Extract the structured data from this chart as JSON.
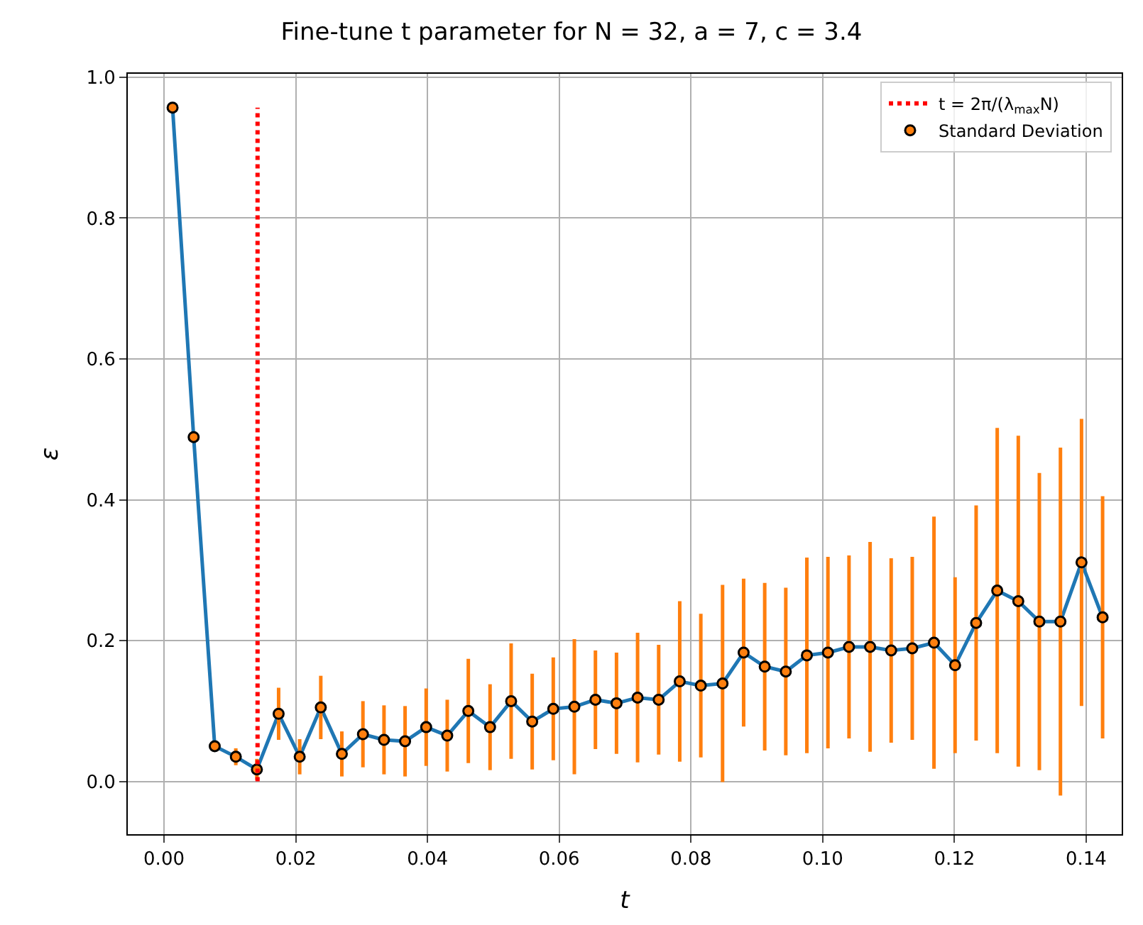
{
  "chart_data": {
    "type": "scatter",
    "title": "Fine-tune t parameter for N = 32, a = 7, c = 3.4",
    "xlabel": "t",
    "ylabel": "ε",
    "x": [
      0.0013,
      0.0045,
      0.0077,
      0.0109,
      0.0141,
      0.0174,
      0.0206,
      0.0238,
      0.027,
      0.0302,
      0.0334,
      0.0366,
      0.0398,
      0.043,
      0.0462,
      0.0495,
      0.0527,
      0.0559,
      0.0591,
      0.0623,
      0.0655,
      0.0687,
      0.0719,
      0.0751,
      0.0783,
      0.0815,
      0.0848,
      0.088,
      0.0912,
      0.0944,
      0.0976,
      0.1008,
      0.104,
      0.1072,
      0.1104,
      0.1136,
      0.1169,
      0.1201,
      0.1233,
      0.1265,
      0.1297,
      0.1329,
      0.1361,
      0.1393,
      0.1425
    ],
    "series": [
      {
        "type": "line",
        "color": "#1f77b4",
        "marker": "none",
        "values": [
          0.957,
          0.489,
          0.05,
          0.035,
          0.017,
          0.096,
          0.035,
          0.105,
          0.039,
          0.067,
          0.059,
          0.057,
          0.077,
          0.065,
          0.1,
          0.077,
          0.114,
          0.085,
          0.103,
          0.106,
          0.116,
          0.111,
          0.119,
          0.116,
          0.142,
          0.136,
          0.139,
          0.183,
          0.163,
          0.156,
          0.179,
          0.183,
          0.191,
          0.191,
          0.186,
          0.189,
          0.197,
          0.165,
          0.225,
          0.271,
          0.256,
          0.227,
          0.227,
          0.311,
          0.233
        ]
      },
      {
        "name": "Standard Deviation",
        "color": "#ff7f0e",
        "marker": "circle",
        "values": [
          0.957,
          0.489,
          0.05,
          0.035,
          0.017,
          0.096,
          0.035,
          0.105,
          0.039,
          0.067,
          0.059,
          0.057,
          0.077,
          0.065,
          0.1,
          0.077,
          0.114,
          0.085,
          0.103,
          0.106,
          0.116,
          0.111,
          0.119,
          0.116,
          0.142,
          0.136,
          0.139,
          0.183,
          0.163,
          0.156,
          0.179,
          0.183,
          0.191,
          0.191,
          0.186,
          0.189,
          0.197,
          0.165,
          0.225,
          0.271,
          0.256,
          0.227,
          0.227,
          0.311,
          0.233
        ],
        "errors": [
          0.002,
          0.002,
          0.004,
          0.012,
          0.015,
          0.037,
          0.025,
          0.045,
          0.032,
          0.047,
          0.049,
          0.05,
          0.055,
          0.051,
          0.074,
          0.061,
          0.082,
          0.068,
          0.073,
          0.096,
          0.07,
          0.072,
          0.092,
          0.078,
          0.114,
          0.102,
          0.14,
          0.105,
          0.119,
          0.119,
          0.139,
          0.136,
          0.13,
          0.149,
          0.131,
          0.13,
          0.179,
          0.125,
          0.167,
          0.231,
          0.235,
          0.211,
          0.247,
          0.204,
          0.172
        ]
      },
      {
        "type": "line",
        "name": "t = 2π/(λ$_{max}$N)",
        "color": "#ff0000",
        "marker": "none",
        "line_style": "dotted",
        "x": [
          0.0142,
          0.0142
        ],
        "values": [
          0,
          0.957
        ]
      }
    ],
    "xlim": [
      -0.0055,
      0.1454
    ],
    "ylim": [
      -0.075,
      1.005
    ],
    "xticks": [
      {
        "value": 0,
        "label": "0.00"
      },
      {
        "value": 0.02,
        "label": "0.02"
      },
      {
        "value": 0.04,
        "label": "0.04"
      },
      {
        "value": 0.06,
        "label": "0.06"
      },
      {
        "value": 0.08,
        "label": "0.08"
      },
      {
        "value": 0.1,
        "label": "0.10"
      },
      {
        "value": 0.12,
        "label": "0.12"
      },
      {
        "value": 0.14,
        "label": "0.14"
      }
    ],
    "yticks": [
      {
        "value": 0,
        "label": "0.0"
      },
      {
        "value": 0.2,
        "label": "0.2"
      },
      {
        "value": 0.4,
        "label": "0.4"
      },
      {
        "value": 0.6,
        "label": "0.6"
      },
      {
        "value": 0.8,
        "label": "0.8"
      },
      {
        "value": 1,
        "label": "1.0"
      }
    ],
    "grid": true,
    "legend": "top right"
  }
}
